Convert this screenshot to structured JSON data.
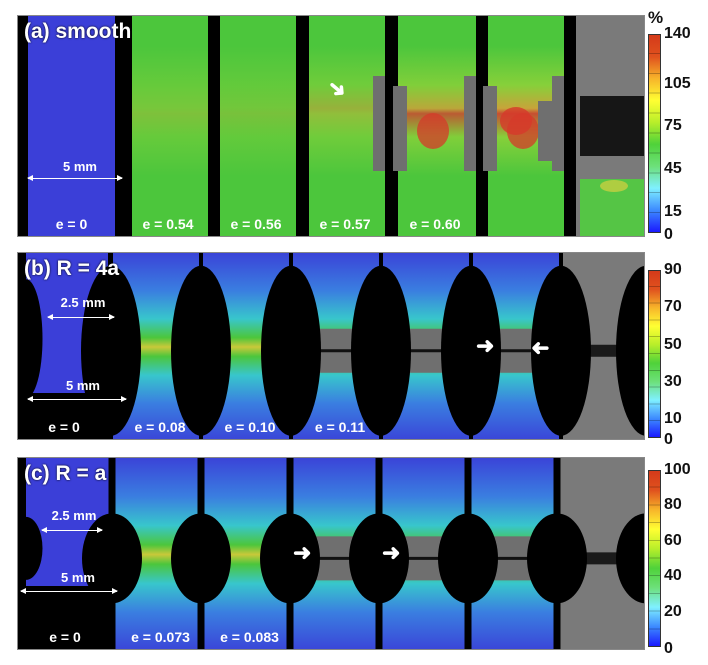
{
  "figure": {
    "panels": [
      {
        "id": "a",
        "label": "(a) smooth",
        "scale_label": "5 mm",
        "frames": [
          {
            "strain": "e = 0",
            "state": "undeformed"
          },
          {
            "strain": "e = 0.54",
            "state": "uniform"
          },
          {
            "strain": "e = 0.56",
            "state": "necking-onset"
          },
          {
            "strain": "e = 0.57",
            "state": "localized",
            "arrow": true
          },
          {
            "strain": "e = 0.60",
            "state": "localized"
          },
          {
            "strain": "",
            "state": "localized"
          },
          {
            "strain": "",
            "state": "fractured"
          }
        ],
        "colorbar": {
          "unit": "%",
          "ticks": [
            "140",
            "105",
            "75",
            "45",
            "15",
            "0"
          ],
          "min": 0,
          "max": 140
        }
      },
      {
        "id": "b",
        "label": "(b) R = 4a",
        "scale_labels": [
          "2.5 mm",
          "5 mm"
        ],
        "frames": [
          {
            "strain": "e = 0",
            "state": "undeformed"
          },
          {
            "strain": "e = 0.08",
            "state": "deforming"
          },
          {
            "strain": "e = 0.10",
            "state": "deforming"
          },
          {
            "strain": "e = 0.11",
            "state": "localized"
          },
          {
            "strain": "",
            "state": "cracking"
          },
          {
            "strain": "",
            "state": "crack-arrows",
            "arrows": true
          },
          {
            "strain": "",
            "state": "fractured"
          }
        ],
        "colorbar": {
          "unit": "",
          "ticks": [
            "90",
            "70",
            "50",
            "30",
            "10",
            "0"
          ],
          "min": 0,
          "max": 90
        }
      },
      {
        "id": "c",
        "label": "(c) R = a",
        "scale_labels": [
          "2.5 mm",
          "5 mm"
        ],
        "frames": [
          {
            "strain": "e = 0",
            "state": "undeformed"
          },
          {
            "strain": "e = 0.073",
            "state": "deforming"
          },
          {
            "strain": "e = 0.083",
            "state": "deforming"
          },
          {
            "strain": "",
            "state": "crack-arrow",
            "arrow": true
          },
          {
            "strain": "",
            "state": "crack-arrow",
            "arrow": true
          },
          {
            "strain": "",
            "state": "cracking"
          },
          {
            "strain": "",
            "state": "fractured"
          }
        ],
        "colorbar": {
          "unit": "",
          "ticks": [
            "100",
            "80",
            "60",
            "40",
            "20",
            "0"
          ],
          "min": 0,
          "max": 100
        }
      }
    ],
    "colormap": [
      "#1a1aff",
      "#3d8bff",
      "#7ff0ff",
      "#6de07a",
      "#4fd23a",
      "#b8ee2a",
      "#ffff33",
      "#f7b52a",
      "#e0521e",
      "#d43a1a"
    ]
  }
}
